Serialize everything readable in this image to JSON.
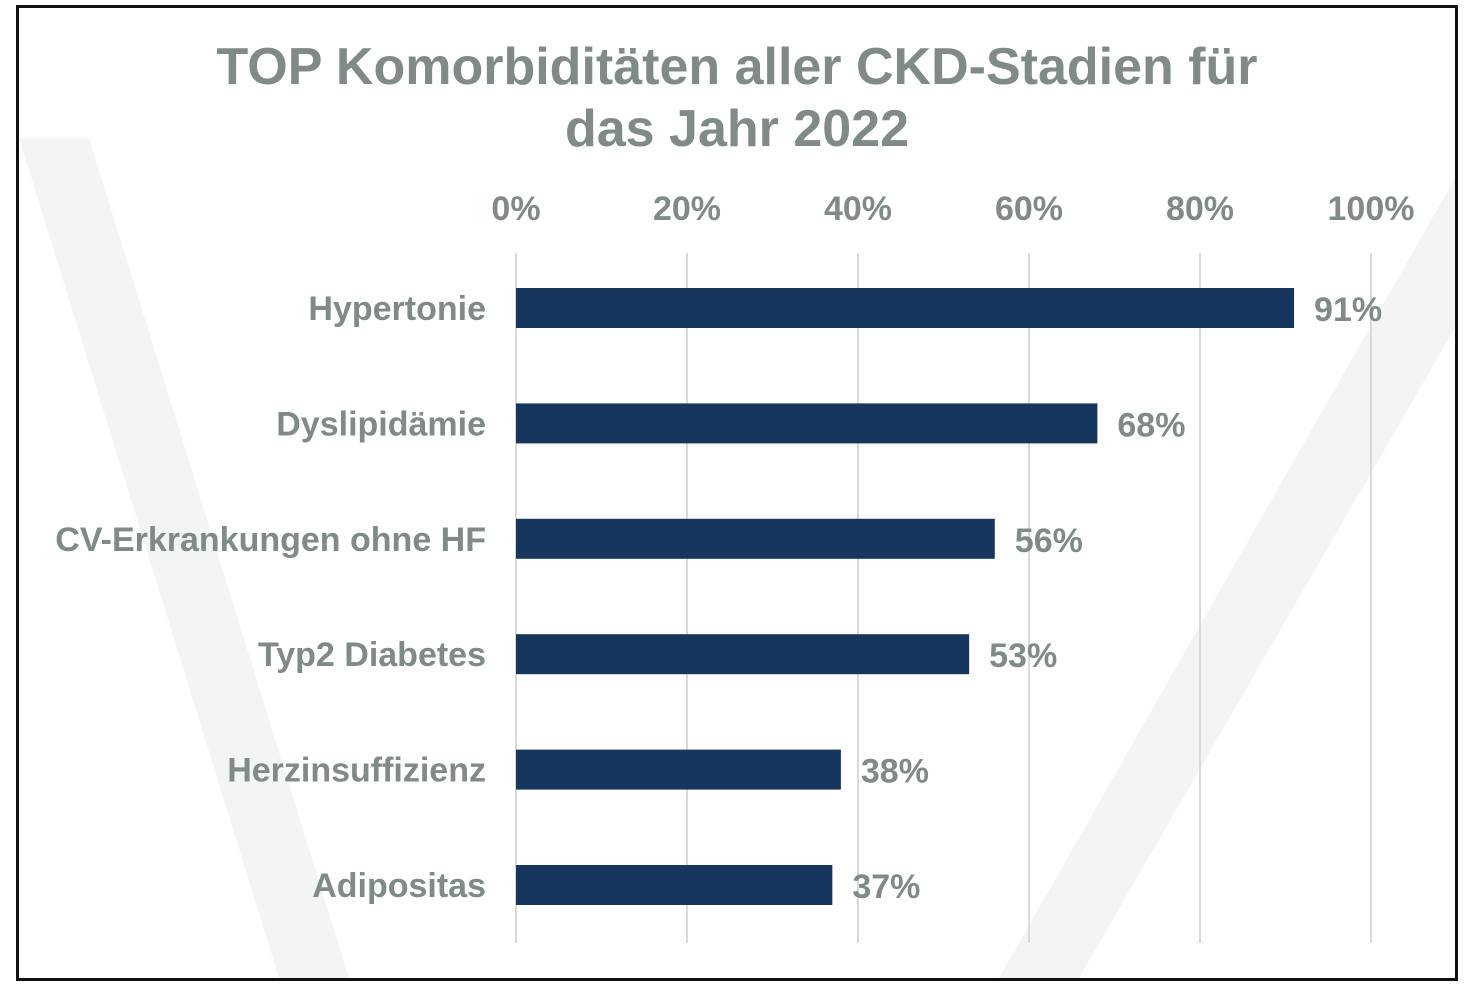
{
  "chart_data": {
    "type": "bar",
    "orientation": "horizontal",
    "title": "TOP Komorbiditäten aller CKD-Stadien für das Jahr 2022",
    "title_lines": [
      "TOP Komorbiditäten aller CKD-Stadien für",
      "das Jahr 2022"
    ],
    "categories": [
      "Hypertonie",
      "Dyslipidämie",
      "CV-Erkrankungen ohne HF",
      "Typ2 Diabetes",
      "Herzinsuffizienz",
      "Adipositas"
    ],
    "values": [
      91,
      68,
      56,
      53,
      38,
      37
    ],
    "data_labels": [
      "91%",
      "68%",
      "56%",
      "53%",
      "38%",
      "37%"
    ],
    "x_ticks": [
      "0%",
      "20%",
      "40%",
      "60%",
      "80%",
      "100%"
    ],
    "xlim": [
      0,
      100
    ],
    "x_axis_position": "top",
    "grid": true,
    "xlabel": "",
    "ylabel": "",
    "colors": {
      "bar": "#17365d",
      "text": "#7f8a89",
      "grid": "#d9d9d9",
      "watermark": "#f3f4f6"
    }
  }
}
